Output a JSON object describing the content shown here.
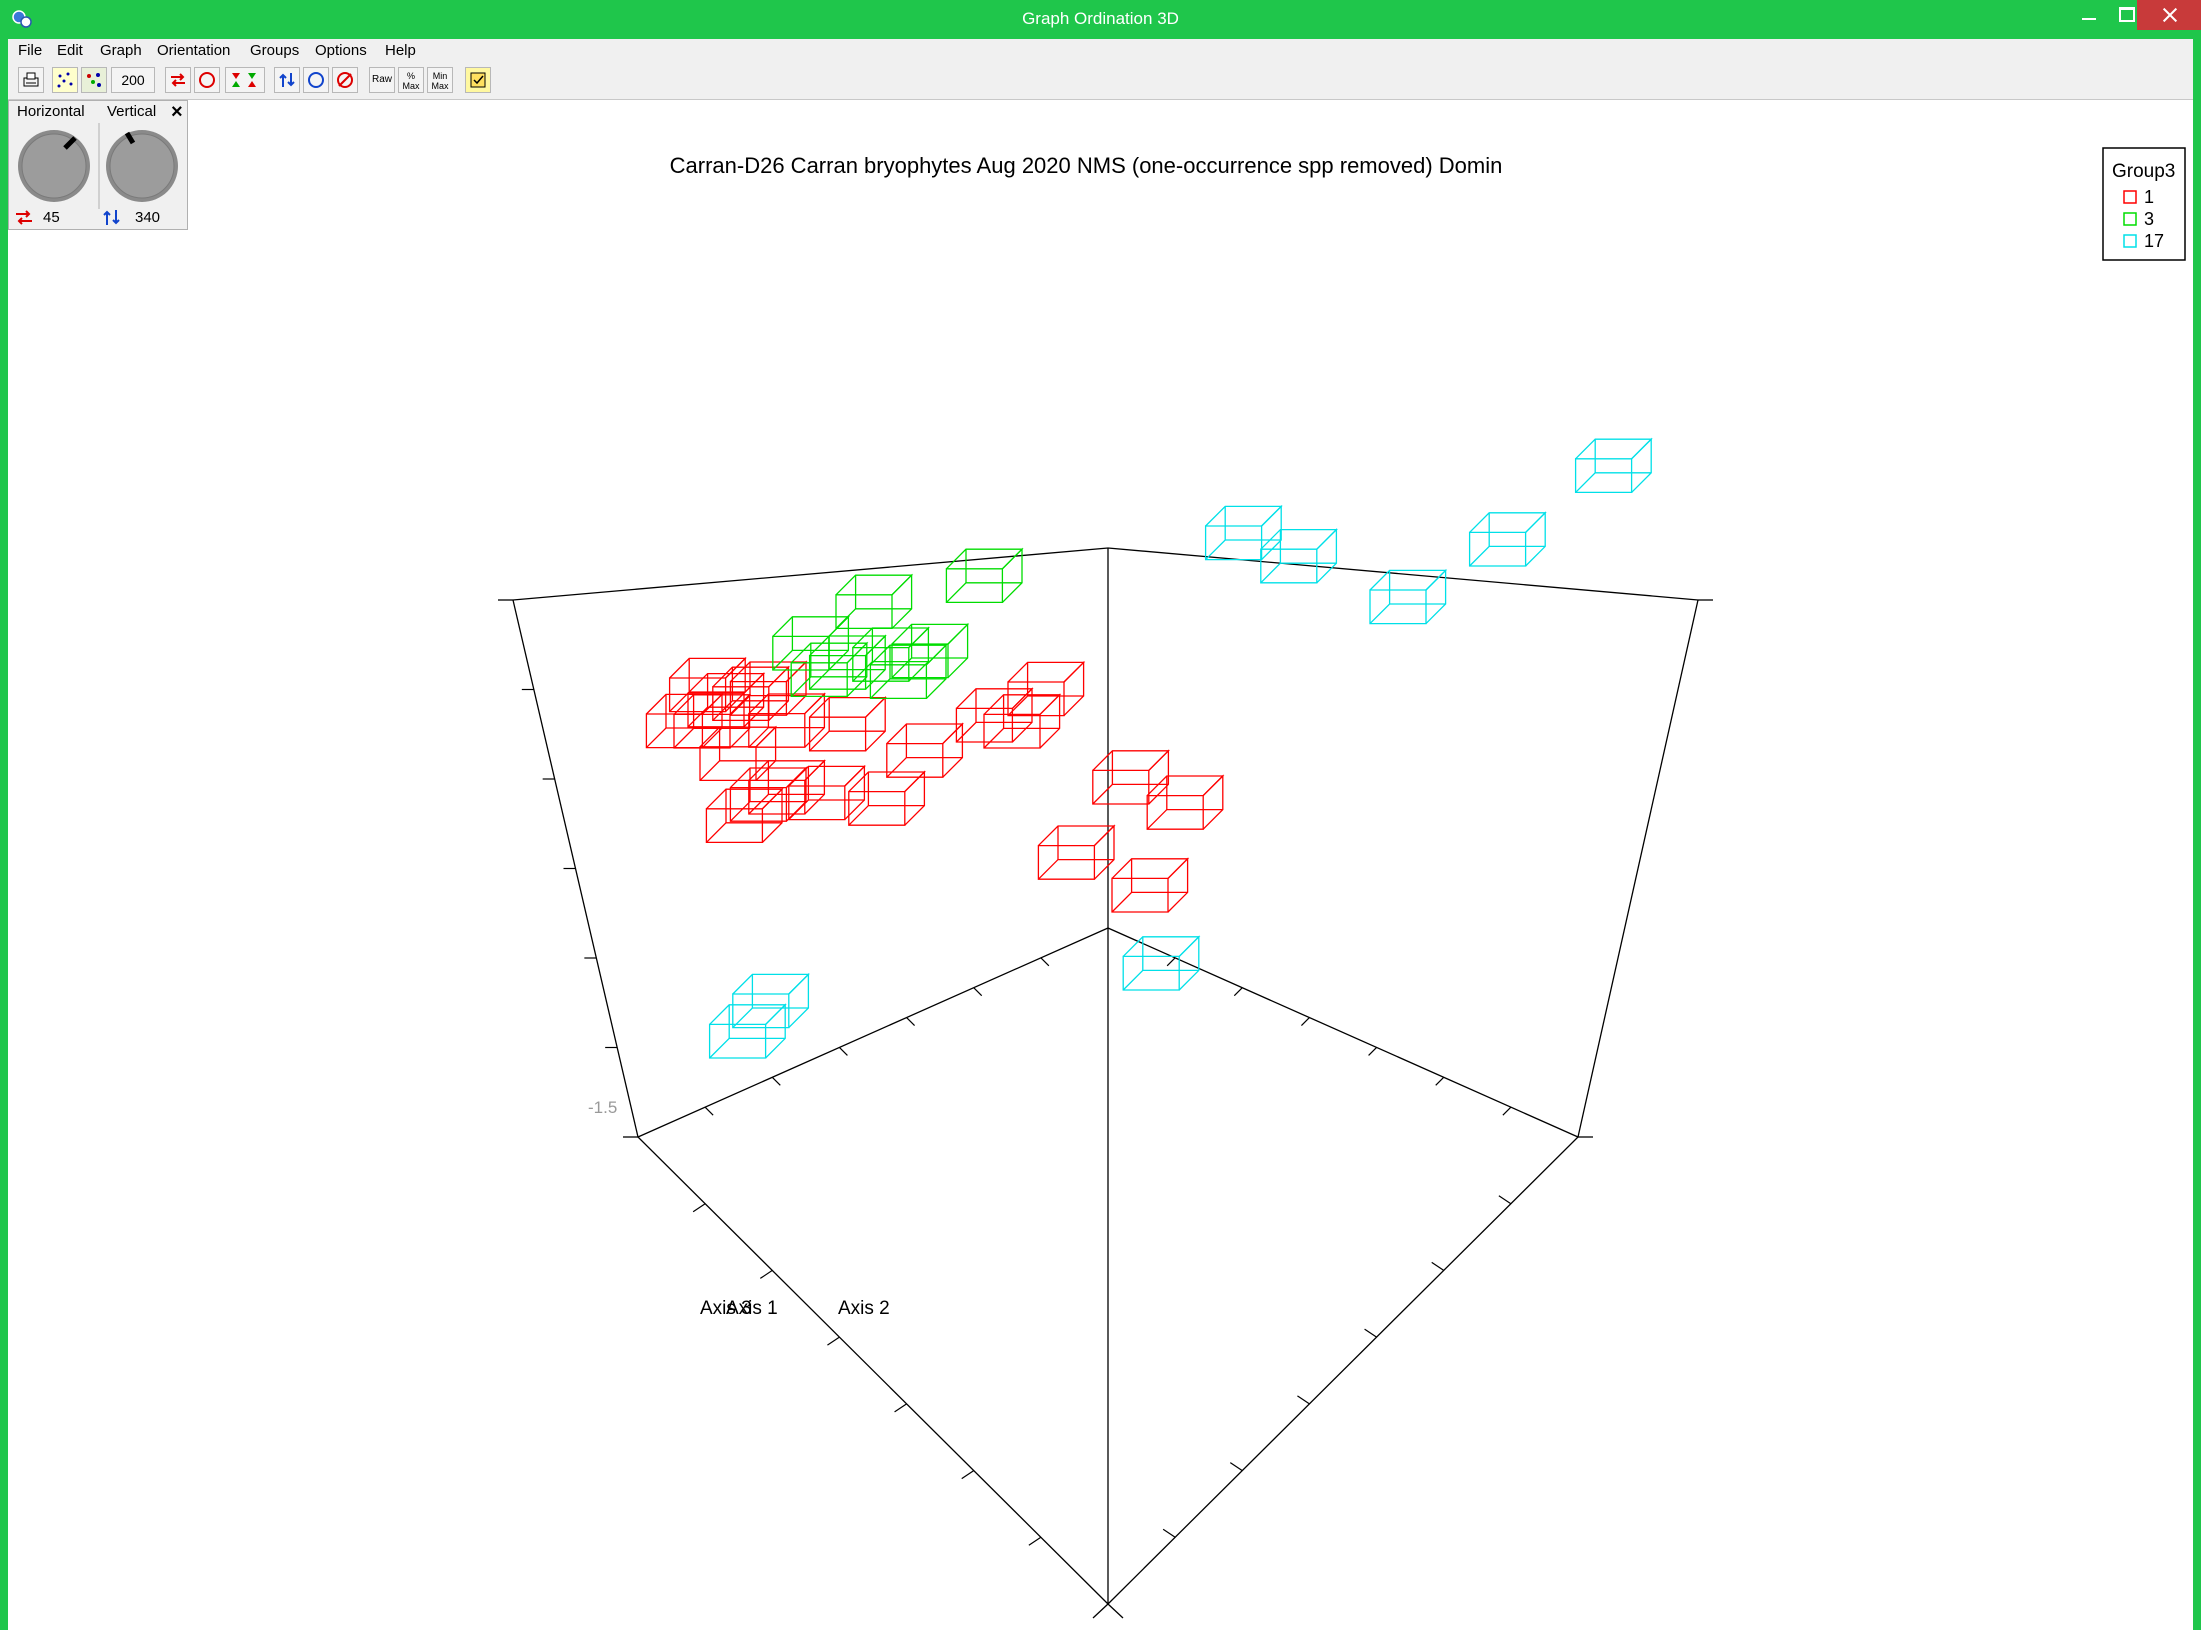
{
  "window": {
    "title": "Graph Ordination 3D",
    "accent_color": "#1fc64b",
    "close_color": "#c83a3a"
  },
  "menu": [
    {
      "label": "File"
    },
    {
      "label": "Edit"
    },
    {
      "label": "Graph"
    },
    {
      "label": "Orientation"
    },
    {
      "label": "Groups"
    },
    {
      "label": "Options"
    },
    {
      "label": "Help"
    }
  ],
  "toolbar": {
    "point_count": "200",
    "raw_label": "Raw",
    "max_label": "Max",
    "min_label": "Min",
    "icons": [
      "print-icon",
      "points-icon",
      "points-alt-icon",
      "rotate-horizontal-icon",
      "circle-icon",
      "axis-flip-icon",
      "rotate-vertical-icon",
      "circle-blue-icon",
      "rotate-both-icon",
      "raw-scale-icon",
      "percent-max-icon",
      "min-max-icon",
      "notes-icon"
    ]
  },
  "rotation": {
    "horizontal_label": "Horizontal",
    "vertical_label": "Vertical",
    "close_label": "×",
    "horizontal_value": "45",
    "vertical_value": "340"
  },
  "chart_data": {
    "type": "scatter",
    "title": "Carran-D26 Carran bryophytes Aug 2020 NMS (one-occurrence spp removed) Domin",
    "axis_labels": [
      "Axis 3",
      "Axis 1",
      "Axis 2"
    ],
    "corner_label": "-1.5",
    "view": {
      "horizontal_deg": 45,
      "vertical_deg": 340
    },
    "legend": {
      "title": "Group3",
      "position": "top-right",
      "entries": [
        {
          "label": "1",
          "color": "#ff0000"
        },
        {
          "label": "3",
          "color": "#00dd00"
        },
        {
          "label": "17",
          "color": "#00e0e8"
        }
      ]
    },
    "series": [
      {
        "name": "1",
        "color": "#ff0000",
        "points": [
          [
            0.08,
            0.62,
            0.66
          ],
          [
            0.1,
            0.6,
            0.64
          ],
          [
            0.12,
            0.66,
            0.63
          ],
          [
            0.06,
            0.58,
            0.61
          ],
          [
            0.14,
            0.63,
            0.65
          ],
          [
            0.16,
            0.61,
            0.6
          ],
          [
            0.09,
            0.55,
            0.62
          ],
          [
            0.22,
            0.62,
            0.59
          ],
          [
            0.12,
            0.5,
            0.58
          ],
          [
            0.37,
            0.58,
            0.62
          ],
          [
            0.42,
            0.6,
            0.66
          ],
          [
            0.4,
            0.55,
            0.62
          ],
          [
            0.31,
            0.46,
            0.6
          ],
          [
            0.16,
            0.38,
            0.55
          ],
          [
            0.18,
            0.36,
            0.57
          ],
          [
            0.22,
            0.36,
            0.56
          ],
          [
            0.28,
            0.36,
            0.55
          ],
          [
            0.14,
            0.33,
            0.53
          ],
          [
            0.52,
            0.41,
            0.57
          ],
          [
            0.58,
            0.34,
            0.55
          ],
          [
            0.48,
            0.23,
            0.5
          ],
          [
            0.56,
            0.15,
            0.47
          ]
        ]
      },
      {
        "name": "3",
        "color": "#00dd00",
        "points": [
          [
            0.24,
            0.7,
            0.78
          ],
          [
            0.18,
            0.66,
            0.72
          ],
          [
            0.22,
            0.62,
            0.7
          ],
          [
            0.26,
            0.66,
            0.7
          ],
          [
            0.28,
            0.63,
            0.68
          ],
          [
            0.2,
            0.64,
            0.68
          ],
          [
            0.3,
            0.65,
            0.71
          ],
          [
            0.34,
            0.83,
            0.78
          ]
        ]
      },
      {
        "name": "17",
        "color": "#00e0e8",
        "points": [
          [
            0.6,
            0.82,
            0.86
          ],
          [
            0.66,
            0.76,
            0.84
          ],
          [
            0.97,
            0.82,
            0.98
          ],
          [
            0.88,
            0.62,
            0.92
          ],
          [
            0.79,
            0.5,
            0.86
          ],
          [
            0.18,
            0.16,
            0.26
          ],
          [
            0.16,
            0.12,
            0.22
          ],
          [
            0.58,
            0.04,
            0.37
          ]
        ]
      }
    ]
  }
}
